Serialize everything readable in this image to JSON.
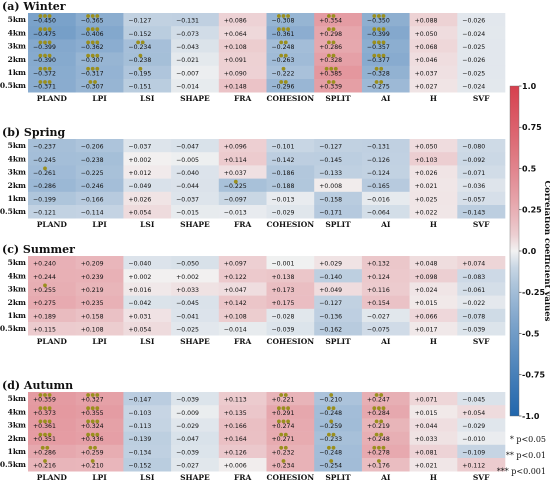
{
  "chart_data": {
    "type": "heatmap",
    "columns": [
      "PLAND",
      "LPI",
      "LSI",
      "SHAPE",
      "FRA",
      "COHESION",
      "SPLIT",
      "AI",
      "H",
      "SVF"
    ],
    "rows": [
      "5km",
      "4km",
      "3km",
      "2km",
      "1km",
      "0.5km"
    ],
    "colorbar": {
      "label": "Correlation coefficient values",
      "range": [
        -1.0,
        1.0
      ],
      "ticks": [
        "1.0",
        "0.75",
        "0.5",
        "0.25",
        "0.0",
        "-0.25",
        "-0.5",
        "-0.75",
        "-1.0"
      ],
      "colors": {
        "neg": "#2166ac",
        "mid": "#f2f2f2",
        "pos": "#d6404e"
      }
    },
    "legend": [
      "* p<0.05",
      "** p<0.01",
      "*** p<0.001"
    ],
    "panels": [
      {
        "title": "(a) Winter",
        "values": [
          [
            -0.45,
            -0.365,
            -0.127,
            -0.131,
            0.086,
            -0.308,
            0.354,
            -0.35,
            0.088,
            -0.026
          ],
          [
            -0.475,
            -0.406,
            -0.152,
            -0.073,
            0.064,
            -0.361,
            0.298,
            -0.399,
            0.05,
            -0.024
          ],
          [
            -0.399,
            -0.362,
            -0.234,
            -0.043,
            0.108,
            -0.248,
            0.286,
            -0.357,
            0.068,
            -0.025
          ],
          [
            -0.39,
            -0.307,
            -0.238,
            -0.021,
            0.091,
            -0.263,
            0.328,
            -0.377,
            0.046,
            -0.026
          ],
          [
            -0.372,
            -0.317,
            -0.195,
            -0.007,
            0.09,
            -0.222,
            0.385,
            -0.328,
            0.037,
            -0.025
          ],
          [
            -0.371,
            -0.307,
            -0.151,
            -0.014,
            0.148,
            -0.296,
            0.339,
            -0.275,
            0.027,
            -0.024
          ]
        ],
        "sig": [
          [
            3,
            3,
            0,
            0,
            0,
            3,
            2,
            3,
            0,
            0
          ],
          [
            3,
            3,
            0,
            0,
            0,
            3,
            2,
            3,
            0,
            0
          ],
          [
            3,
            3,
            2,
            0,
            0,
            2,
            2,
            3,
            0,
            0
          ],
          [
            3,
            3,
            1,
            0,
            0,
            2,
            2,
            3,
            0,
            0
          ],
          [
            3,
            3,
            1,
            0,
            0,
            1,
            3,
            2,
            0,
            0
          ],
          [
            3,
            2,
            0,
            0,
            0,
            2,
            2,
            2,
            0,
            0
          ]
        ]
      },
      {
        "title": "(b) Spring",
        "values": [
          [
            -0.237,
            -0.206,
            -0.037,
            -0.047,
            0.096,
            -0.101,
            -0.127,
            -0.131,
            0.05,
            -0.08
          ],
          [
            -0.245,
            -0.238,
            0.002,
            -0.005,
            0.114,
            -0.142,
            -0.145,
            -0.126,
            0.103,
            -0.092
          ],
          [
            -0.261,
            -0.225,
            0.012,
            -0.04,
            0.037,
            -0.186,
            -0.133,
            -0.124,
            0.026,
            -0.071
          ],
          [
            -0.286,
            -0.246,
            -0.049,
            -0.044,
            -0.225,
            -0.188,
            0.008,
            -0.165,
            0.021,
            -0.036
          ],
          [
            -0.199,
            -0.166,
            0.026,
            -0.037,
            -0.097,
            -0.013,
            -0.158,
            -0.016,
            0.025,
            -0.057
          ],
          [
            -0.121,
            -0.114,
            0.054,
            -0.015,
            -0.013,
            -0.029,
            -0.171,
            -0.064,
            0.022,
            -0.143
          ]
        ],
        "sig": [
          [
            0,
            0,
            0,
            0,
            0,
            0,
            0,
            0,
            0,
            0
          ],
          [
            0,
            0,
            0,
            0,
            0,
            0,
            0,
            0,
            0,
            0
          ],
          [
            1,
            0,
            0,
            0,
            0,
            0,
            0,
            0,
            0,
            0
          ],
          [
            0,
            0,
            0,
            0,
            1,
            0,
            0,
            0,
            0,
            0
          ],
          [
            0,
            0,
            0,
            0,
            0,
            0,
            0,
            0,
            0,
            0
          ],
          [
            0,
            0,
            0,
            0,
            0,
            0,
            0,
            0,
            0,
            0
          ]
        ]
      },
      {
        "title": "(c) Summer",
        "values": [
          [
            0.24,
            0.209,
            -0.04,
            -0.05,
            0.097,
            -0.001,
            0.029,
            0.132,
            0.048,
            0.074
          ],
          [
            0.244,
            0.239,
            0.002,
            0.002,
            0.122,
            0.138,
            -0.14,
            0.124,
            0.098,
            -0.083
          ],
          [
            0.255,
            0.219,
            0.016,
            0.033,
            0.047,
            0.173,
            0.049,
            0.116,
            0.024,
            -0.061
          ],
          [
            0.275,
            0.235,
            -0.042,
            -0.045,
            0.142,
            0.175,
            -0.127,
            0.154,
            0.015,
            -0.022
          ],
          [
            0.189,
            0.158,
            0.031,
            -0.041,
            0.108,
            -0.028,
            -0.136,
            -0.027,
            0.066,
            -0.078
          ],
          [
            0.115,
            0.108,
            0.054,
            -0.025,
            -0.014,
            -0.039,
            -0.162,
            -0.075,
            0.017,
            -0.039
          ]
        ],
        "sig": [
          [
            0,
            0,
            0,
            0,
            0,
            0,
            0,
            0,
            0,
            0
          ],
          [
            0,
            0,
            0,
            0,
            0,
            0,
            0,
            0,
            0,
            0
          ],
          [
            1,
            0,
            0,
            0,
            0,
            0,
            0,
            0,
            0,
            0
          ],
          [
            0,
            0,
            0,
            0,
            0,
            0,
            0,
            0,
            0,
            0
          ],
          [
            0,
            0,
            0,
            0,
            0,
            0,
            0,
            0,
            0,
            0
          ],
          [
            0,
            0,
            0,
            0,
            0,
            0,
            0,
            0,
            0,
            0
          ]
        ]
      },
      {
        "title": "(d) Autumn",
        "values": [
          [
            0.359,
            0.327,
            -0.147,
            -0.039,
            0.113,
            0.221,
            -0.21,
            0.247,
            0.071,
            -0.045
          ],
          [
            0.373,
            0.355,
            -0.103,
            -0.009,
            0.135,
            0.291,
            -0.248,
            0.284,
            0.015,
            0.054
          ],
          [
            0.361,
            0.324,
            -0.113,
            -0.029,
            0.166,
            0.274,
            -0.259,
            0.219,
            0.044,
            -0.029
          ],
          [
            0.351,
            0.336,
            -0.139,
            -0.047,
            0.164,
            0.271,
            -0.233,
            0.248,
            0.033,
            -0.01
          ],
          [
            0.286,
            0.259,
            -0.134,
            -0.039,
            0.126,
            0.232,
            -0.248,
            0.278,
            0.081,
            -0.109
          ],
          [
            0.216,
            0.21,
            -0.152,
            -0.027,
            0.006,
            0.234,
            -0.254,
            0.176,
            0.021,
            0.112
          ]
        ],
        "sig": [
          [
            3,
            3,
            0,
            0,
            0,
            2,
            1,
            2,
            0,
            0
          ],
          [
            3,
            3,
            0,
            0,
            0,
            3,
            2,
            3,
            0,
            0
          ],
          [
            3,
            3,
            0,
            0,
            0,
            3,
            1,
            2,
            0,
            0
          ],
          [
            3,
            3,
            0,
            0,
            0,
            2,
            2,
            2,
            0,
            0
          ],
          [
            2,
            2,
            0,
            0,
            0,
            2,
            2,
            3,
            0,
            0
          ],
          [
            1,
            1,
            0,
            0,
            0,
            1,
            1,
            1,
            0,
            0
          ]
        ]
      }
    ]
  }
}
